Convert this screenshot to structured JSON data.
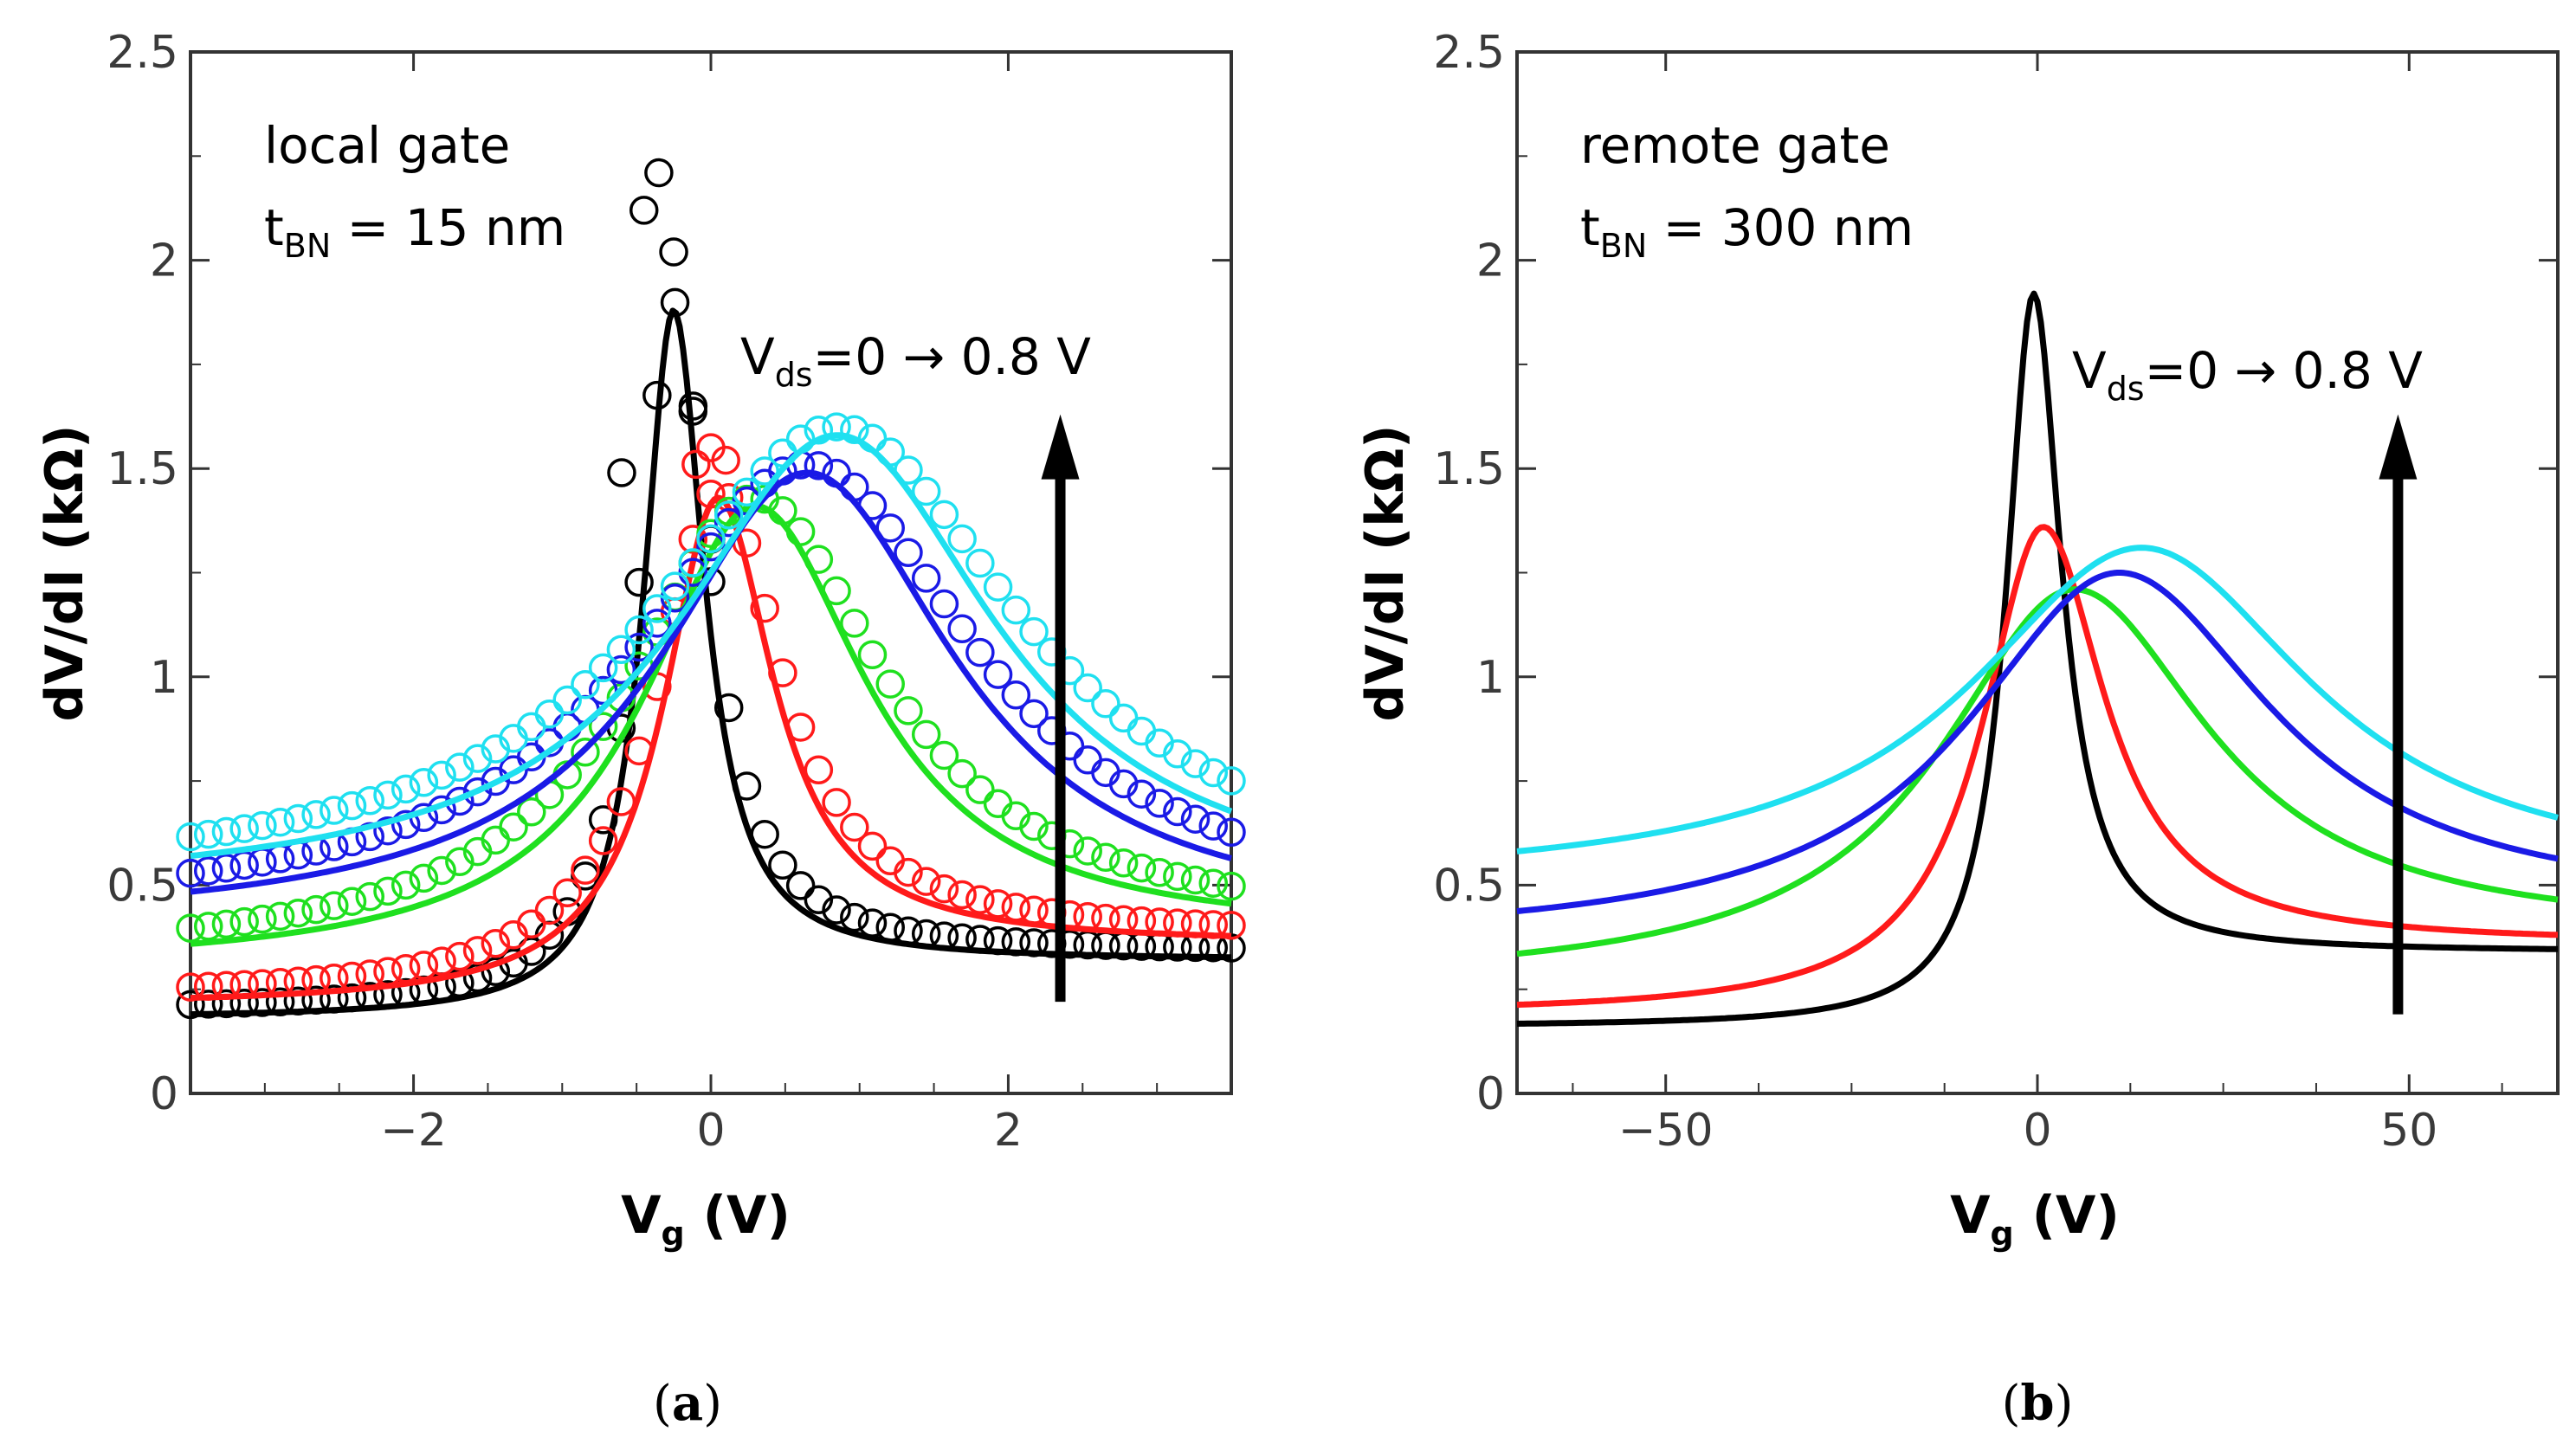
{
  "colors": {
    "black": "#000000",
    "red": "#ff1a1a",
    "green": "#1fe01f",
    "blue": "#1a1ae6",
    "cyan": "#1fe0f0"
  },
  "chart_data": [
    {
      "id": "a",
      "type": "line",
      "caption_letter": "a",
      "xlabel_main": "V",
      "xlabel_sub": "g",
      "xlabel_unit": " (V)",
      "ylabel": "dV/dI (kΩ)",
      "xlim": [
        -3.5,
        3.5
      ],
      "ylim": [
        0,
        2.5
      ],
      "xticks": [
        -2,
        0,
        2
      ],
      "xtick_labels": [
        "−2",
        "0",
        "2"
      ],
      "yticks": [
        0,
        0.5,
        1,
        1.5,
        2,
        2.5
      ],
      "ytick_labels": [
        "0",
        "0.5",
        "1",
        "1.5",
        "2",
        "2.5"
      ],
      "label_line1": "local gate",
      "label_t": "t",
      "label_sub": "BN",
      "label_rest": " = 15 nm",
      "vds_main": "V",
      "vds_sub": "ds",
      "vds_rest": "=0 → 0.8 V",
      "arrow": {
        "x": 2.35,
        "y_from": 0.22,
        "y_to": 1.63
      },
      "series": [
        {
          "name": "Vds=0",
          "color": "black",
          "peak_v": -0.25,
          "peak_r": 1.88,
          "width": 0.25,
          "left_base": 0.18,
          "right_base": 0.32,
          "markers": [
            [
              -0.6,
              1.49
            ],
            [
              -0.45,
              2.12
            ],
            [
              -0.35,
              2.21
            ],
            [
              -0.25,
              2.02
            ],
            [
              -0.12,
              1.65
            ],
            [
              0.0,
              1.33
            ]
          ]
        },
        {
          "name": "Vds=0.2",
          "color": "red",
          "peak_v": 0.05,
          "peak_r": 1.43,
          "width": 0.45,
          "left_base": 0.21,
          "right_base": 0.36,
          "markers": [
            [
              -0.1,
              1.51
            ],
            [
              0.0,
              1.55
            ],
            [
              0.1,
              1.52
            ]
          ]
        },
        {
          "name": "Vds=0.4",
          "color": "green",
          "peak_v": 0.3,
          "peak_r": 1.41,
          "width": 0.9,
          "left_base": 0.3,
          "right_base": 0.38,
          "markers": []
        },
        {
          "name": "Vds=0.6",
          "color": "blue",
          "peak_v": 0.65,
          "peak_r": 1.49,
          "width": 1.2,
          "left_base": 0.4,
          "right_base": 0.4,
          "markers": []
        },
        {
          "name": "Vds=0.8",
          "color": "cyan",
          "peak_v": 0.85,
          "peak_r": 1.58,
          "width": 1.3,
          "left_base": 0.48,
          "right_base": 0.46,
          "markers": []
        }
      ]
    },
    {
      "id": "b",
      "type": "line",
      "caption_letter": "b",
      "xlabel_main": "V",
      "xlabel_sub": "g",
      "xlabel_unit": " (V)",
      "ylabel": "dV/dI (kΩ)",
      "xlim": [
        -70,
        70
      ],
      "ylim": [
        0,
        2.5
      ],
      "xticks": [
        -50,
        0,
        50
      ],
      "xtick_labels": [
        "−50",
        "0",
        "50"
      ],
      "yticks": [
        0,
        0.5,
        1,
        1.5,
        2,
        2.5
      ],
      "ytick_labels": [
        "0",
        "0.5",
        "1",
        "1.5",
        "2",
        "2.5"
      ],
      "label_line1": "remote gate",
      "label_t": "t",
      "label_sub": "BN",
      "label_rest": " = 300 nm",
      "vds_main": "V",
      "vds_sub": "ds",
      "vds_rest": "=0 → 0.8 V",
      "arrow": {
        "x": 48.5,
        "y_from": 0.19,
        "y_to": 1.63
      },
      "series": [
        {
          "name": "Vds=0",
          "color": "black",
          "peak_v": -0.5,
          "peak_r": 1.92,
          "width": 4.5,
          "left_base": 0.16,
          "right_base": 0.34
        },
        {
          "name": "Vds=0.2",
          "color": "red",
          "peak_v": 0.8,
          "peak_r": 1.36,
          "width": 10,
          "left_base": 0.19,
          "right_base": 0.36
        },
        {
          "name": "Vds=0.4",
          "color": "green",
          "peak_v": 5,
          "peak_r": 1.21,
          "width": 22,
          "left_base": 0.26,
          "right_base": 0.38
        },
        {
          "name": "Vds=0.6",
          "color": "blue",
          "peak_v": 11,
          "peak_r": 1.25,
          "width": 25,
          "left_base": 0.36,
          "right_base": 0.44
        },
        {
          "name": "Vds=0.8",
          "color": "cyan",
          "peak_v": 14,
          "peak_r": 1.31,
          "width": 28,
          "left_base": 0.5,
          "right_base": 0.5
        }
      ]
    }
  ]
}
